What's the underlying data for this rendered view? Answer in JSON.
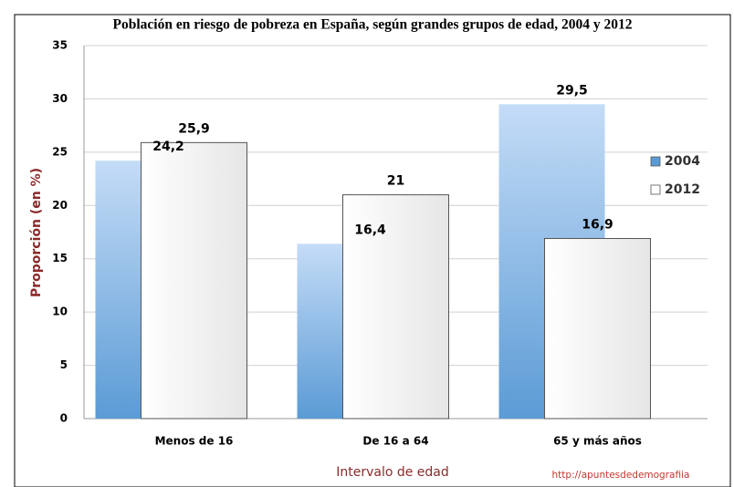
{
  "chart_data": {
    "type": "bar",
    "title": "Población en riesgo de pobreza en España, según grandes grupos de edad, 2004 y 2012",
    "categories": [
      "Menos de 16",
      "De 16 a 64",
      "65 y más años"
    ],
    "series": [
      {
        "name": "2004",
        "color": "#5b9bd5",
        "values": [
          24.2,
          16.4,
          29.5
        ],
        "value_labels": [
          "24,2",
          "16,4",
          "29,5"
        ]
      },
      {
        "name": "2012",
        "color": "#ffffff",
        "values": [
          25.9,
          21,
          16.9
        ],
        "value_labels": [
          "25,9",
          "21",
          "16,9"
        ]
      }
    ],
    "ylim": [
      0,
      35
    ],
    "yticks": [
      0,
      5,
      10,
      15,
      20,
      25,
      30,
      35
    ],
    "ylabel": "Proporción (en %)",
    "xlabel": "Intervalo de edad",
    "annotation": "http://apuntesdedemografiia",
    "legend": "right",
    "grid": true
  }
}
